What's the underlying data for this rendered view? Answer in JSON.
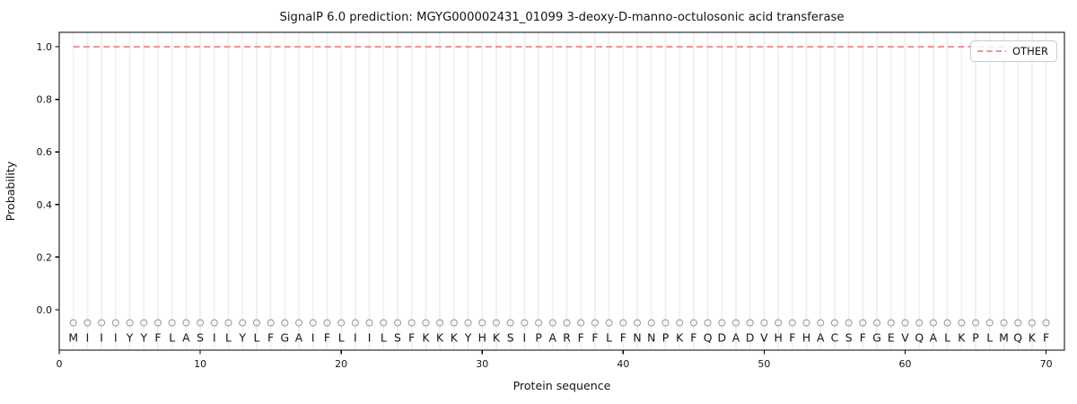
{
  "chart_data": {
    "type": "line",
    "title": "SignalP 6.0 prediction: MGYG000002431_01099 3-deoxy-D-manno-octulosonic acid transferase",
    "xlabel": "Protein sequence",
    "ylabel": "Probability",
    "xlim": [
      0,
      71.3
    ],
    "ylim": [
      -0.154,
      1.055
    ],
    "x_ticks": [
      0,
      10,
      20,
      30,
      40,
      50,
      60,
      70
    ],
    "y_ticks": [
      0.0,
      0.2,
      0.4,
      0.6,
      0.8,
      1.0
    ],
    "grid": "vertical gridline at every residue position",
    "legend": {
      "position": "upper right",
      "entries": [
        {
          "label": "OTHER",
          "style": "dashed",
          "color": "#ec8688"
        }
      ]
    },
    "series": [
      {
        "name": "OTHER",
        "style": "dashed",
        "color": "#ec8688",
        "x": [
          1,
          2,
          3,
          4,
          5,
          6,
          7,
          8,
          9,
          10,
          11,
          12,
          13,
          14,
          15,
          16,
          17,
          18,
          19,
          20,
          21,
          22,
          23,
          24,
          25,
          26,
          27,
          28,
          29,
          30,
          31,
          32,
          33,
          34,
          35,
          36,
          37,
          38,
          39,
          40,
          41,
          42,
          43,
          44,
          45,
          46,
          47,
          48,
          49,
          50,
          51,
          52,
          53,
          54,
          55,
          56,
          57,
          58,
          59,
          60,
          61,
          62,
          63,
          64,
          65,
          66,
          67,
          68,
          69,
          70
        ],
        "values": [
          1.0,
          1.0,
          1.0,
          1.0,
          1.0,
          1.0,
          1.0,
          1.0,
          1.0,
          1.0,
          1.0,
          1.0,
          1.0,
          1.0,
          1.0,
          1.0,
          1.0,
          1.0,
          1.0,
          1.0,
          1.0,
          1.0,
          1.0,
          1.0,
          1.0,
          1.0,
          1.0,
          1.0,
          1.0,
          1.0,
          1.0,
          1.0,
          1.0,
          1.0,
          1.0,
          1.0,
          1.0,
          1.0,
          1.0,
          1.0,
          1.0,
          1.0,
          1.0,
          1.0,
          1.0,
          1.0,
          1.0,
          1.0,
          1.0,
          1.0,
          1.0,
          1.0,
          1.0,
          1.0,
          1.0,
          1.0,
          1.0,
          1.0,
          1.0,
          1.0,
          1.0,
          1.0,
          1.0,
          1.0,
          1.0,
          1.0,
          1.0,
          1.0,
          1.0,
          1.0
        ]
      }
    ],
    "sequence": [
      "M",
      "I",
      "I",
      "I",
      "Y",
      "Y",
      "F",
      "L",
      "A",
      "S",
      "I",
      "L",
      "Y",
      "L",
      "F",
      "G",
      "A",
      "I",
      "F",
      "L",
      "I",
      "I",
      "L",
      "S",
      "F",
      "K",
      "K",
      "K",
      "Y",
      "H",
      "K",
      "S",
      "I",
      "P",
      "A",
      "R",
      "F",
      "F",
      "L",
      "F",
      "N",
      "N",
      "P",
      "K",
      "F",
      "Q",
      "D",
      "A",
      "D",
      "V",
      "H",
      "F",
      "H",
      "A",
      "C",
      "S",
      "F",
      "G",
      "E",
      "V",
      "Q",
      "A",
      "L",
      "K",
      "P",
      "L",
      "M",
      "Q",
      "K",
      "F"
    ],
    "sequence_marker": {
      "symbol": "open-circle",
      "color": "#9e9e9e",
      "y": -0.05
    },
    "sequence_letter_y": -0.1,
    "colors": {
      "other_line": "#ec8688",
      "gridline": "#f0f0f0",
      "marker_stroke": "#9e9e9e",
      "spine": "#000000",
      "legend_border": "#cccccc",
      "text": "#141414"
    }
  }
}
